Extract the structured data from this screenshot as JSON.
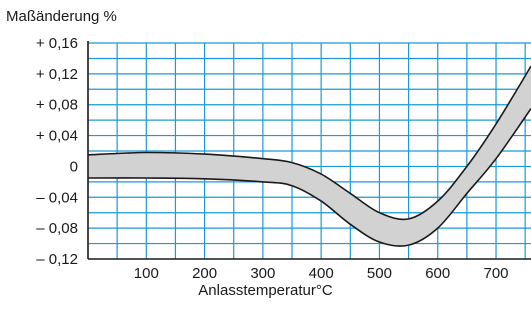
{
  "chart_data": {
    "type": "area",
    "ylabel": "Maßänderung %",
    "xlabel": "Anlasstemperatur°C",
    "xlim": [
      0,
      760
    ],
    "ylim": [
      -0.12,
      0.16
    ],
    "x_ticks": [
      100,
      200,
      300,
      400,
      500,
      600,
      700
    ],
    "x_tick_labels": [
      "100",
      "200",
      "300",
      "400",
      "500",
      "600",
      "700"
    ],
    "y_ticks": [
      0.16,
      0.12,
      0.08,
      0.04,
      0,
      -0.04,
      -0.08,
      -0.12
    ],
    "y_tick_labels": [
      "+ 0,16",
      "+ 0,12",
      "+ 0,08",
      "+ 0,04",
      "0",
      "– 0,04",
      "– 0,08",
      "– 0,12"
    ],
    "grid_x_step": 50,
    "grid_y_step": 0.02,
    "grid": true,
    "band": {
      "upper": [
        [
          0,
          0.015
        ],
        [
          100,
          0.018
        ],
        [
          200,
          0.016
        ],
        [
          300,
          0.01
        ],
        [
          350,
          0.005
        ],
        [
          400,
          -0.01
        ],
        [
          450,
          -0.035
        ],
        [
          500,
          -0.06
        ],
        [
          550,
          -0.068
        ],
        [
          600,
          -0.045
        ],
        [
          650,
          0.0
        ],
        [
          700,
          0.055
        ],
        [
          760,
          0.13
        ]
      ],
      "lower": [
        [
          0,
          -0.015
        ],
        [
          100,
          -0.015
        ],
        [
          200,
          -0.016
        ],
        [
          300,
          -0.02
        ],
        [
          350,
          -0.025
        ],
        [
          400,
          -0.045
        ],
        [
          450,
          -0.075
        ],
        [
          500,
          -0.098
        ],
        [
          550,
          -0.102
        ],
        [
          600,
          -0.08
        ],
        [
          650,
          -0.035
        ],
        [
          700,
          0.01
        ],
        [
          760,
          0.075
        ]
      ]
    },
    "colors": {
      "grid": "#1a9ad8",
      "band_fill": "#d2d2d2",
      "band_edge": "#1a1a1a",
      "axis": "#1a1a1a"
    }
  }
}
